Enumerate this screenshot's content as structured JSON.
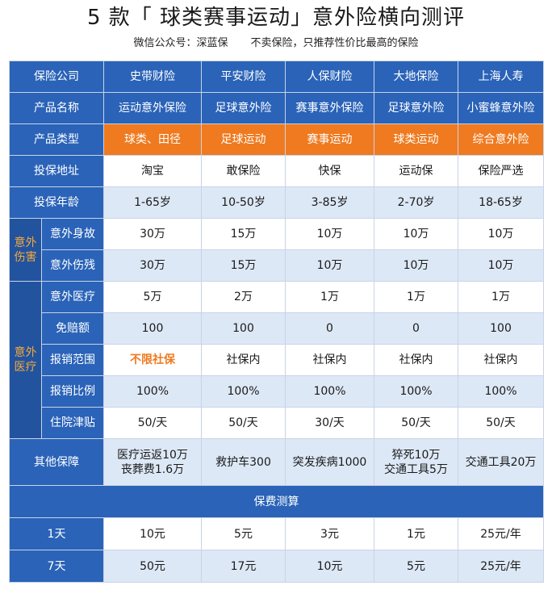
{
  "title": "5 款「 球类赛事运动」意外险横向测评",
  "subtitle": {
    "left": "微信公众号：深蓝保",
    "right": "不卖保险，只推荐性价比最高的保险"
  },
  "table": {
    "header_label": "保险公司",
    "companies": [
      "史带财险",
      "平安财险",
      "人保财险",
      "大地保险",
      "上海人寿"
    ],
    "product_label": "产品名称",
    "products": [
      "运动意外保险",
      "足球意外险",
      "赛事意外保险",
      "足球意外险",
      "小蜜蜂意外险"
    ],
    "type_label": "产品类型",
    "types": [
      "球类、田径",
      "足球运动",
      "赛事运动",
      "球类运动",
      "综合意外险"
    ],
    "channel_label": "投保地址",
    "channels": [
      "淘宝",
      "敢保险",
      "快保",
      "运动保",
      "保险严选"
    ],
    "age_label": "投保年龄",
    "ages": [
      "1-65岁",
      "10-50岁",
      "3-85岁",
      "2-70岁",
      "18-65岁"
    ],
    "injury_group": "意外伤害",
    "death_label": "意外身故",
    "death": [
      "30万",
      "15万",
      "10万",
      "10万",
      "10万"
    ],
    "disability_label": "意外伤残",
    "disability": [
      "30万",
      "15万",
      "10万",
      "10万",
      "10万"
    ],
    "medical_group": "意外医疗",
    "medical_label": "意外医疗",
    "medical": [
      "5万",
      "2万",
      "1万",
      "1万",
      "1万"
    ],
    "deductible_label": "免赔额",
    "deductible": [
      "100",
      "100",
      "0",
      "0",
      "100"
    ],
    "scope_label": "报销范围",
    "scope": [
      "不限社保",
      "社保内",
      "社保内",
      "社保内",
      "社保内"
    ],
    "ratio_label": "报销比例",
    "ratio": [
      "100%",
      "100%",
      "100%",
      "100%",
      "100%"
    ],
    "allowance_label": "住院津贴",
    "allowance": [
      "50/天",
      "50/天",
      "30/天",
      "50/天",
      "50/天"
    ],
    "other_label": "其他保障",
    "other": [
      [
        "医疗运返10万",
        "丧葬费1.6万"
      ],
      [
        "救护车300"
      ],
      [
        "突发疾病1000"
      ],
      [
        "猝死10万",
        "交通工具5万"
      ],
      [
        "交通工具20万"
      ]
    ],
    "premium_header": "保费测算",
    "day1_label": "1天",
    "day1": [
      "10元",
      "5元",
      "3元",
      "1元",
      "25元/年"
    ],
    "day7_label": "7天",
    "day7": [
      "50元",
      "17元",
      "10元",
      "5元",
      "25元/年"
    ]
  },
  "colors": {
    "header_blue": "#2a63b8",
    "accent_orange": "#ef7a1f",
    "light_row": "#dde8f6",
    "group_label": "#f3a93b"
  }
}
